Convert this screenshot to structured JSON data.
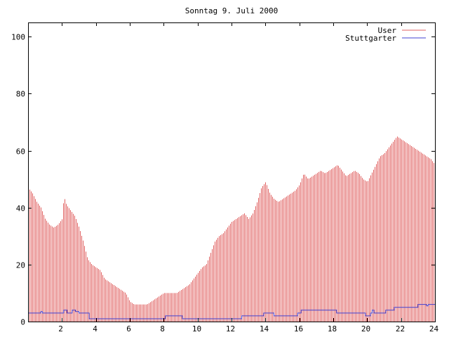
{
  "chart_data": {
    "type": "bar",
    "title": "Sonntag 9. Juli 2000",
    "xlabel": "",
    "ylabel": "",
    "xlim": [
      0,
      24
    ],
    "ylim": [
      0,
      105
    ],
    "x_ticks": [
      2,
      4,
      6,
      8,
      10,
      12,
      14,
      16,
      18,
      20,
      22,
      24
    ],
    "x_tick_labels": [
      "2",
      "4",
      "6",
      "8",
      "10",
      "12",
      "14",
      "16",
      "18",
      "20",
      "22",
      "24"
    ],
    "y_ticks": [
      0,
      20,
      40,
      60,
      80,
      100
    ],
    "y_tick_labels": [
      "0",
      "20",
      "40",
      "60",
      "80",
      "100"
    ],
    "grid": false,
    "legend_position": "top-right",
    "series": [
      {
        "name": "User",
        "kind": "impulses",
        "color": "#e06060",
        "points": [
          [
            0.0,
            47
          ],
          [
            0.25,
            45
          ],
          [
            0.5,
            42
          ],
          [
            0.75,
            40
          ],
          [
            1.0,
            36
          ],
          [
            1.25,
            34
          ],
          [
            1.5,
            33
          ],
          [
            1.75,
            34
          ],
          [
            2.0,
            36
          ],
          [
            2.1,
            44
          ],
          [
            2.25,
            41
          ],
          [
            2.5,
            39
          ],
          [
            2.75,
            37
          ],
          [
            3.0,
            33
          ],
          [
            3.25,
            28
          ],
          [
            3.5,
            22
          ],
          [
            3.75,
            20
          ],
          [
            4.0,
            19
          ],
          [
            4.25,
            18
          ],
          [
            4.5,
            15
          ],
          [
            4.75,
            14
          ],
          [
            5.0,
            13
          ],
          [
            5.25,
            12
          ],
          [
            5.5,
            11
          ],
          [
            5.75,
            10
          ],
          [
            6.0,
            7
          ],
          [
            6.25,
            6
          ],
          [
            6.5,
            6
          ],
          [
            6.75,
            6
          ],
          [
            7.0,
            6
          ],
          [
            7.25,
            7
          ],
          [
            7.5,
            8
          ],
          [
            7.75,
            9
          ],
          [
            8.0,
            10
          ],
          [
            8.25,
            10
          ],
          [
            8.5,
            10
          ],
          [
            8.75,
            10
          ],
          [
            9.0,
            11
          ],
          [
            9.25,
            12
          ],
          [
            9.5,
            13
          ],
          [
            9.75,
            15
          ],
          [
            10.0,
            17
          ],
          [
            10.25,
            19
          ],
          [
            10.5,
            20
          ],
          [
            10.75,
            24
          ],
          [
            11.0,
            28
          ],
          [
            11.25,
            30
          ],
          [
            11.5,
            31
          ],
          [
            11.75,
            33
          ],
          [
            12.0,
            35
          ],
          [
            12.25,
            36
          ],
          [
            12.5,
            37
          ],
          [
            12.75,
            38
          ],
          [
            13.0,
            36
          ],
          [
            13.25,
            38
          ],
          [
            13.5,
            42
          ],
          [
            13.75,
            47
          ],
          [
            14.0,
            49
          ],
          [
            14.25,
            45
          ],
          [
            14.5,
            43
          ],
          [
            14.75,
            42
          ],
          [
            15.0,
            43
          ],
          [
            15.25,
            44
          ],
          [
            15.5,
            45
          ],
          [
            15.75,
            46
          ],
          [
            16.0,
            48
          ],
          [
            16.25,
            52
          ],
          [
            16.5,
            50
          ],
          [
            16.75,
            51
          ],
          [
            17.0,
            52
          ],
          [
            17.25,
            53
          ],
          [
            17.5,
            52
          ],
          [
            17.75,
            53
          ],
          [
            18.0,
            54
          ],
          [
            18.25,
            55
          ],
          [
            18.5,
            53
          ],
          [
            18.75,
            51
          ],
          [
            19.0,
            52
          ],
          [
            19.25,
            53
          ],
          [
            19.5,
            52
          ],
          [
            19.75,
            50
          ],
          [
            20.0,
            49
          ],
          [
            20.25,
            52
          ],
          [
            20.5,
            55
          ],
          [
            20.75,
            58
          ],
          [
            21.0,
            59
          ],
          [
            21.25,
            61
          ],
          [
            21.5,
            63
          ],
          [
            21.75,
            65
          ],
          [
            22.0,
            64
          ],
          [
            22.25,
            63
          ],
          [
            22.5,
            62
          ],
          [
            22.75,
            61
          ],
          [
            23.0,
            60
          ],
          [
            23.25,
            59
          ],
          [
            23.5,
            58
          ],
          [
            23.75,
            57
          ],
          [
            24.0,
            55
          ]
        ]
      },
      {
        "name": "Stuttgarter",
        "kind": "steps",
        "color": "#4040d0",
        "points": [
          [
            0.0,
            3
          ],
          [
            0.75,
            3.5
          ],
          [
            0.85,
            3
          ],
          [
            2.0,
            3
          ],
          [
            2.1,
            4
          ],
          [
            2.3,
            3
          ],
          [
            2.6,
            4
          ],
          [
            2.8,
            3.5
          ],
          [
            3.0,
            3
          ],
          [
            3.5,
            3
          ],
          [
            3.6,
            1
          ],
          [
            8.0,
            1
          ],
          [
            8.1,
            2
          ],
          [
            9.0,
            2
          ],
          [
            9.1,
            1
          ],
          [
            12.5,
            1
          ],
          [
            12.6,
            2
          ],
          [
            13.8,
            2
          ],
          [
            13.9,
            3
          ],
          [
            14.4,
            3
          ],
          [
            14.5,
            2
          ],
          [
            15.8,
            2
          ],
          [
            15.9,
            3
          ],
          [
            16.0,
            3
          ],
          [
            16.1,
            4
          ],
          [
            18.1,
            4
          ],
          [
            18.2,
            3
          ],
          [
            19.8,
            3
          ],
          [
            19.9,
            2
          ],
          [
            20.2,
            3
          ],
          [
            20.3,
            4
          ],
          [
            20.4,
            3
          ],
          [
            21.0,
            3
          ],
          [
            21.1,
            4
          ],
          [
            21.5,
            4
          ],
          [
            21.6,
            5
          ],
          [
            22.9,
            5
          ],
          [
            23.0,
            6
          ],
          [
            23.4,
            6
          ],
          [
            23.5,
            5.5
          ],
          [
            23.6,
            6
          ],
          [
            24.0,
            6
          ]
        ]
      }
    ]
  }
}
